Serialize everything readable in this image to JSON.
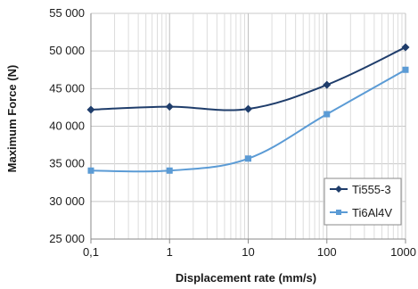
{
  "chart_data": {
    "type": "line",
    "xlabel": "Displacement rate (mm/s)",
    "ylabel": "Maximum Force (N)",
    "x_scale": "log",
    "x": [
      0.1,
      1,
      10,
      100,
      1000
    ],
    "x_tick_labels": [
      "0,1",
      "1",
      "10",
      "100",
      "1000"
    ],
    "ylim": [
      25000,
      55000
    ],
    "y_ticks": [
      25000,
      30000,
      35000,
      40000,
      45000,
      50000,
      55000
    ],
    "y_tick_labels": [
      "25 000",
      "30 000",
      "35 000",
      "40 000",
      "45 000",
      "50 000",
      "55 000"
    ],
    "grid": true,
    "legend_position": "bottom-right",
    "series": [
      {
        "name": "Ti555-3",
        "values": [
          42200,
          42600,
          42300,
          45500,
          50500
        ],
        "color": "#1f3d6b",
        "marker": "diamond"
      },
      {
        "name": "Ti6Al4V",
        "values": [
          34100,
          34100,
          35700,
          41600,
          47500
        ],
        "color": "#5b9bd5",
        "marker": "square"
      }
    ]
  }
}
